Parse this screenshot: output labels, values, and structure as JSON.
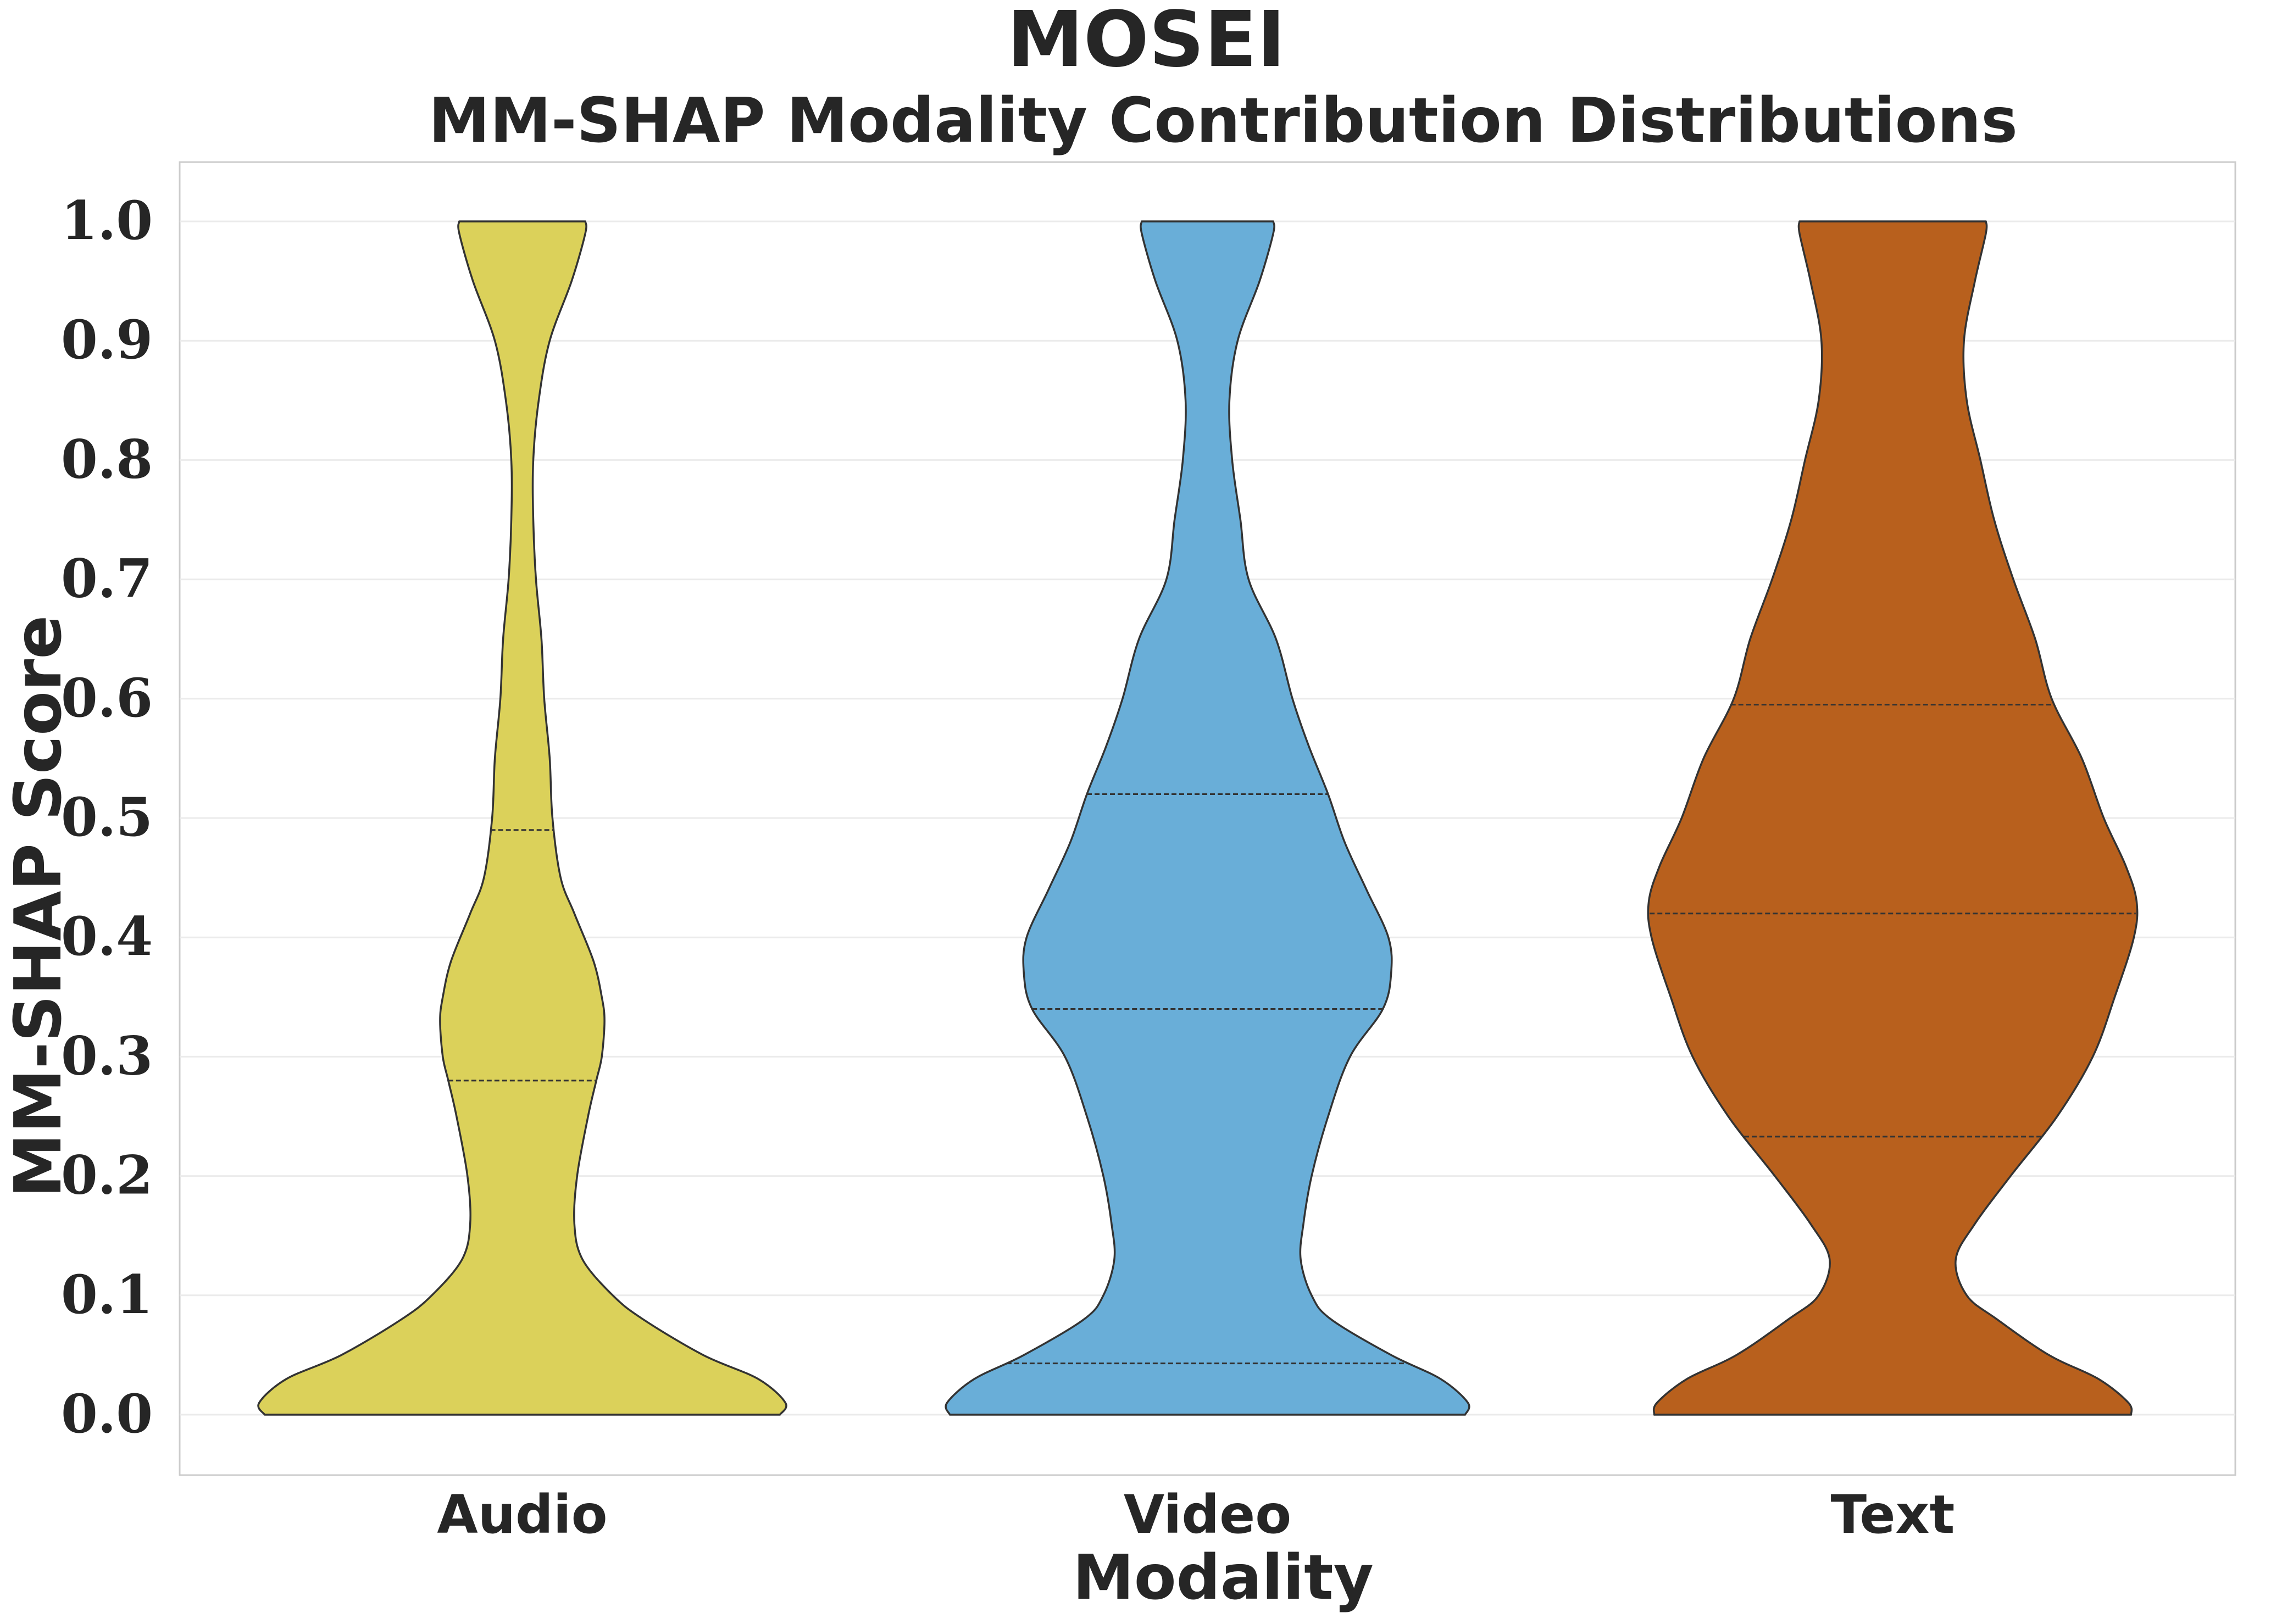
{
  "chart_data": {
    "type": "violin",
    "title": "MOSEI",
    "subtitle": "MM-SHAP Modality Contribution Distributions",
    "xlabel": "Modality",
    "ylabel": "MM-SHAP Score",
    "ylim": [
      -0.05,
      1.05
    ],
    "yticks": [
      "0.0",
      "0.1",
      "0.2",
      "0.3",
      "0.4",
      "0.5",
      "0.6",
      "0.7",
      "0.8",
      "0.9",
      "1.0"
    ],
    "grid": "horizontal",
    "categories": [
      "Audio",
      "Video",
      "Text"
    ],
    "series": [
      {
        "category": "Audio",
        "color": "#dbd15a",
        "quartiles": [
          0.28,
          0.49
        ],
        "density_profile": [
          [
            0.0,
            0.94
          ],
          [
            0.01,
            0.96
          ],
          [
            0.03,
            0.86
          ],
          [
            0.05,
            0.66
          ],
          [
            0.08,
            0.44
          ],
          [
            0.1,
            0.33
          ],
          [
            0.13,
            0.22
          ],
          [
            0.16,
            0.19
          ],
          [
            0.2,
            0.2
          ],
          [
            0.25,
            0.24
          ],
          [
            0.28,
            0.27
          ],
          [
            0.3,
            0.29
          ],
          [
            0.33,
            0.3
          ],
          [
            0.35,
            0.29
          ],
          [
            0.38,
            0.26
          ],
          [
            0.42,
            0.19
          ],
          [
            0.45,
            0.14
          ],
          [
            0.5,
            0.11
          ],
          [
            0.55,
            0.1
          ],
          [
            0.6,
            0.08
          ],
          [
            0.65,
            0.07
          ],
          [
            0.7,
            0.05
          ],
          [
            0.75,
            0.04
          ],
          [
            0.8,
            0.04
          ],
          [
            0.85,
            0.06
          ],
          [
            0.9,
            0.1
          ],
          [
            0.95,
            0.18
          ],
          [
            0.99,
            0.23
          ],
          [
            1.0,
            0.23
          ]
        ]
      },
      {
        "category": "Video",
        "color": "#69aed8",
        "quartiles": [
          0.043,
          0.34,
          0.52
        ],
        "density_profile": [
          [
            0.0,
            0.94
          ],
          [
            0.01,
            0.95
          ],
          [
            0.03,
            0.85
          ],
          [
            0.05,
            0.67
          ],
          [
            0.08,
            0.45
          ],
          [
            0.1,
            0.38
          ],
          [
            0.13,
            0.34
          ],
          [
            0.16,
            0.35
          ],
          [
            0.2,
            0.38
          ],
          [
            0.25,
            0.44
          ],
          [
            0.3,
            0.52
          ],
          [
            0.34,
            0.64
          ],
          [
            0.37,
            0.67
          ],
          [
            0.4,
            0.66
          ],
          [
            0.44,
            0.58
          ],
          [
            0.48,
            0.5
          ],
          [
            0.52,
            0.44
          ],
          [
            0.56,
            0.37
          ],
          [
            0.6,
            0.31
          ],
          [
            0.65,
            0.25
          ],
          [
            0.7,
            0.15
          ],
          [
            0.75,
            0.12
          ],
          [
            0.8,
            0.09
          ],
          [
            0.85,
            0.08
          ],
          [
            0.9,
            0.11
          ],
          [
            0.95,
            0.19
          ],
          [
            0.99,
            0.24
          ],
          [
            1.0,
            0.24
          ]
        ]
      },
      {
        "category": "Text",
        "color": "#b8601d",
        "quartiles": [
          0.233,
          0.42,
          0.595
        ],
        "density_profile": [
          [
            0.0,
            0.87
          ],
          [
            0.01,
            0.86
          ],
          [
            0.03,
            0.75
          ],
          [
            0.05,
            0.57
          ],
          [
            0.08,
            0.38
          ],
          [
            0.1,
            0.27
          ],
          [
            0.13,
            0.23
          ],
          [
            0.16,
            0.3
          ],
          [
            0.2,
            0.43
          ],
          [
            0.25,
            0.6
          ],
          [
            0.3,
            0.73
          ],
          [
            0.35,
            0.81
          ],
          [
            0.4,
            0.88
          ],
          [
            0.43,
            0.89
          ],
          [
            0.46,
            0.85
          ],
          [
            0.5,
            0.77
          ],
          [
            0.55,
            0.69
          ],
          [
            0.6,
            0.58
          ],
          [
            0.65,
            0.52
          ],
          [
            0.7,
            0.44
          ],
          [
            0.75,
            0.37
          ],
          [
            0.8,
            0.32
          ],
          [
            0.85,
            0.27
          ],
          [
            0.9,
            0.26
          ],
          [
            0.95,
            0.3
          ],
          [
            0.99,
            0.34
          ],
          [
            1.0,
            0.34
          ]
        ]
      }
    ]
  }
}
